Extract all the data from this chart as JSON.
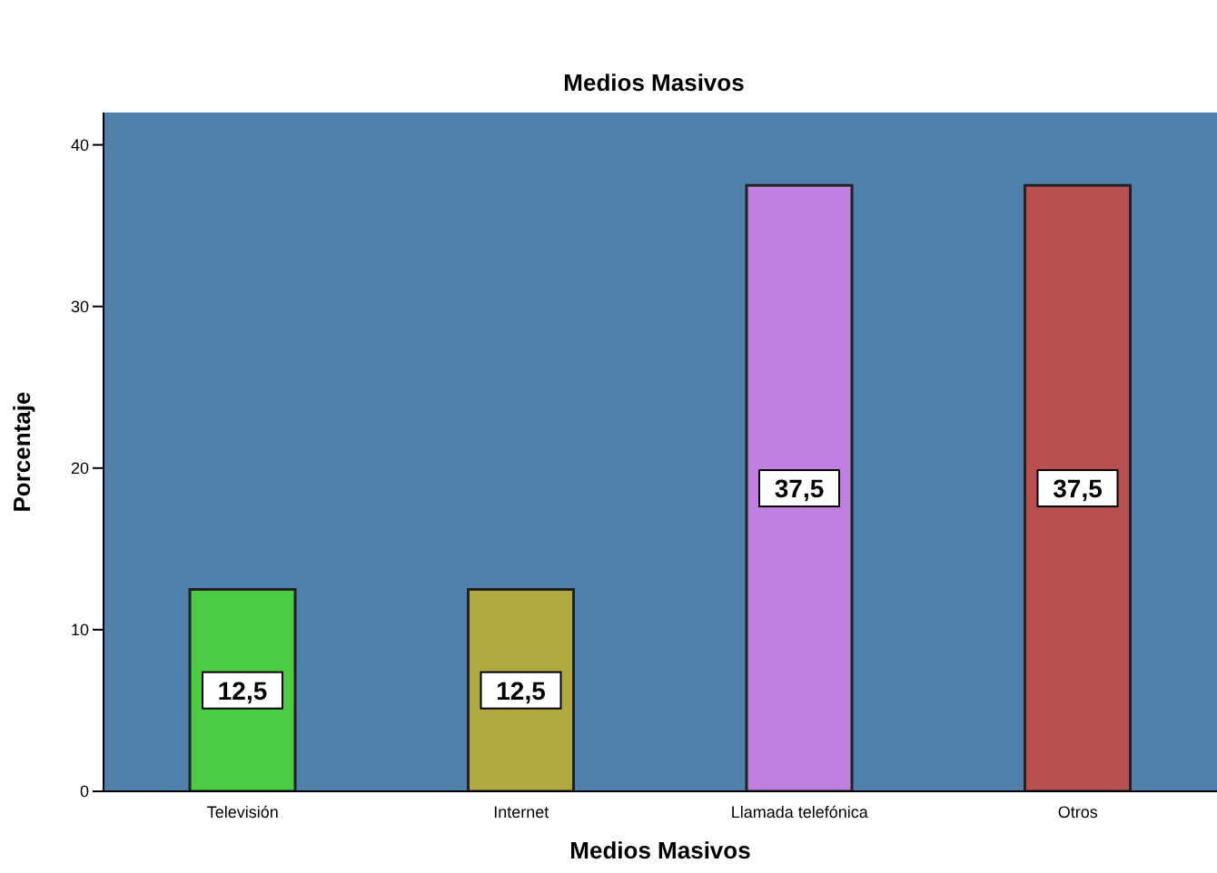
{
  "chart_data": {
    "type": "bar",
    "title": "Medios Masivos",
    "xlabel": "Medios Masivos",
    "ylabel": "Porcentaje",
    "categories": [
      "Televisión",
      "Internet",
      "Llamada telefónica",
      "Otros"
    ],
    "values": [
      12.5,
      12.5,
      37.5,
      37.5
    ],
    "colors": [
      "#4ccc44",
      "#b0a840",
      "#c080e0",
      "#b85050"
    ],
    "value_labels": [
      "12,5",
      "12,5",
      "37,5",
      "37,5"
    ],
    "ylim": [
      0,
      42
    ],
    "yticks": [
      0,
      10,
      20,
      30,
      40
    ],
    "grid": false
  }
}
